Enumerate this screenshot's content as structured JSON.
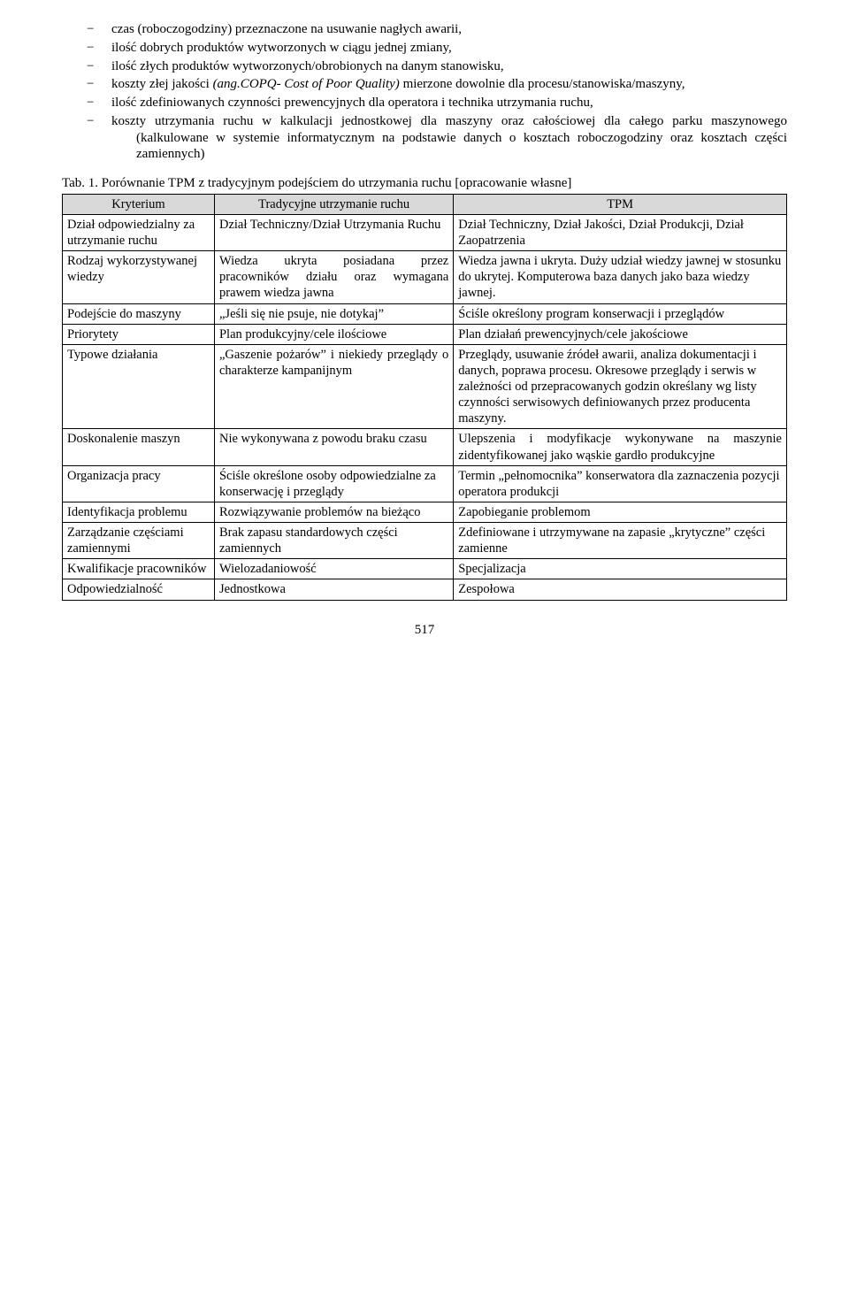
{
  "bullets": [
    "czas (roboczogodziny) przeznaczone na usuwanie nagłych awarii,",
    "ilość dobrych produktów wytworzonych w ciągu jednej zmiany,",
    "ilość złych produktów wytworzonych/obrobionych na danym stanowisku,",
    "koszty złej jakości (ang.COPQ- Cost of Poor Quality) mierzone dowolnie dla procesu/stanowiska/maszyny,",
    "ilość zdefiniowanych czynności prewencyjnych dla operatora i technika utrzymania ruchu,",
    "koszty utrzymania ruchu w kalkulacji jednostkowej dla maszyny oraz całościowej dla całego parku maszynowego (kalkulowane w systemie informatycznym na podstawie danych o kosztach roboczogodziny oraz kosztach części zamiennych)"
  ],
  "tableCaption": "Tab. 1. Porównanie TPM z tradycyjnym podejściem do utrzymania ruchu [opracowanie własne]",
  "headers": {
    "col1": "Kryterium",
    "col2": "Tradycyjne utrzymanie ruchu",
    "col3": "TPM"
  },
  "rows": [
    {
      "c1": "Dział odpowiedzialny za utrzymanie ruchu",
      "c2": "Dział Techniczny/Dział Utrzymania Ruchu",
      "c3": "Dział Techniczny, Dział Jakości, Dział Produkcji, Dział Zaopatrzenia"
    },
    {
      "c1": "Rodzaj wykorzystywanej wiedzy",
      "c2": "Wiedza ukryta posiadana przez pracowników działu oraz wymagana prawem wiedza jawna",
      "c2justify": true,
      "c3": "Wiedza jawna i ukryta. Duży udział wiedzy jawnej w stosunku do ukrytej. Komputerowa baza danych jako baza wiedzy jawnej."
    },
    {
      "c1": "Podejście do maszyny",
      "c2": "„Jeśli się nie psuje, nie dotykaj”",
      "c2justify": true,
      "c3": "Ściśle określony program konserwacji i przeglądów"
    },
    {
      "c1": "Priorytety",
      "c2": "Plan produkcyjny/cele ilościowe",
      "c2justify": true,
      "c3": "Plan działań prewencyjnych/cele jakościowe"
    },
    {
      "c1": "Typowe działania",
      "c2": "„Gaszenie pożarów” i niekiedy przeglądy o charakterze kampanijnym",
      "c2justify": true,
      "c3": "Przeglądy, usuwanie źródeł awarii, analiza dokumentacji i danych, poprawa procesu. Okresowe przeglądy i serwis w zależności od przepracowanych godzin określany wg listy czynności serwisowych definiowanych przez producenta maszyny."
    },
    {
      "c1": "Doskonalenie maszyn",
      "c2": "Nie wykonywana z powodu braku czasu",
      "c2justify": true,
      "c3": "Ulepszenia i modyfikacje wykonywane na maszynie zidentyfikowanej jako wąskie gardło produkcyjne",
      "c3justify": true
    },
    {
      "c1": "Organizacja pracy",
      "c2": "Ściśle określone osoby odpowiedzialne za konserwację i przeglądy",
      "c3": "Termin „pełnomocnika” konserwatora dla zaznaczenia pozycji operatora produkcji"
    },
    {
      "c1": "Identyfikacja problemu",
      "c2": "Rozwiązywanie problemów na bieżąco",
      "c3": "Zapobieganie problemom"
    },
    {
      "c1": "Zarządzanie częściami zamiennymi",
      "c2": "Brak zapasu standardowych części zamiennych",
      "c3": "Zdefiniowane i utrzymywane na zapasie „krytyczne” części zamienne"
    },
    {
      "c1": "Kwalifikacje pracowników",
      "c2": "Wielozadaniowość",
      "c3": "Specjalizacja"
    },
    {
      "c1": "Odpowiedzialność",
      "c2": "Jednostkowa",
      "c3": "Zespołowa"
    }
  ],
  "pageNumber": "517"
}
